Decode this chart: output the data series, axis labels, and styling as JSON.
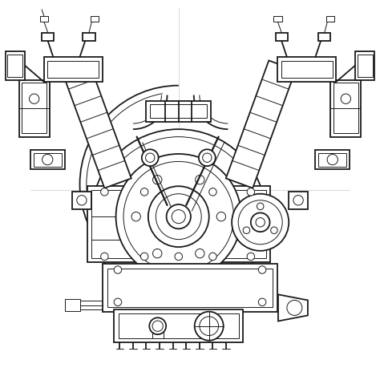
{
  "bg_color": "#ffffff",
  "line_color": "#1a1a1a",
  "lw_main": 1.3,
  "lw_thin": 0.7,
  "lw_thick": 1.8,
  "fig_size": [
    4.74,
    4.74
  ],
  "dpi": 100,
  "xmin": 0,
  "xmax": 10,
  "ymin": 0,
  "ymax": 10
}
